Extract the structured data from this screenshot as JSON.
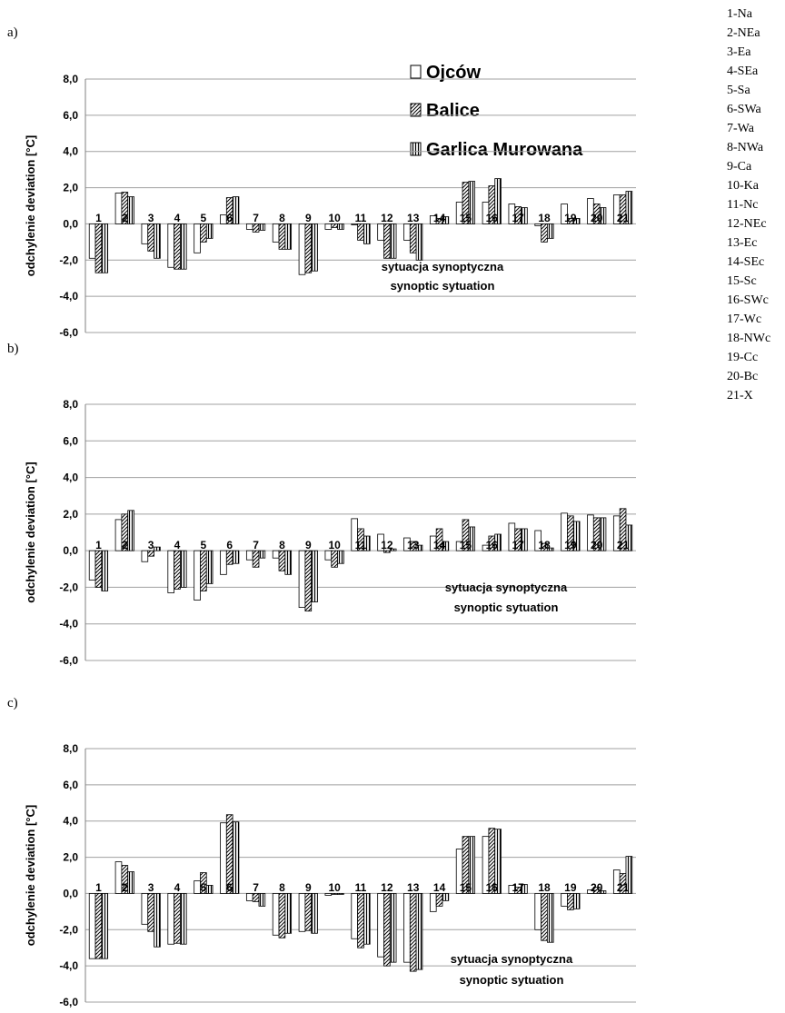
{
  "code_key": [
    "1-Na",
    "2-NEa",
    "3-Ea",
    "4-SEa",
    "5-Sa",
    "6-SWa",
    "7-Wa",
    "8-NWa",
    "9-Ca",
    "10-Ka",
    "11-Nc",
    "12-NEc",
    "13-Ec",
    "14-SEc",
    "15-Sc",
    "16-SWc",
    "17-Wc",
    "18-NWc",
    "19-Cc",
    "20-Bc",
    "21-X"
  ],
  "legend": {
    "items": [
      {
        "label": "Ojców",
        "pattern": "plain"
      },
      {
        "label": "Balice",
        "pattern": "diagonal"
      },
      {
        "label": "Garlica Murowana",
        "pattern": "vertical"
      }
    ]
  },
  "chart_data": [
    {
      "type": "bar",
      "panel_label": "a)",
      "categories": [
        "1",
        "2",
        "3",
        "4",
        "5",
        "6",
        "7",
        "8",
        "9",
        "10",
        "11",
        "12",
        "13",
        "14",
        "15",
        "16",
        "17",
        "18",
        "19",
        "20",
        "21"
      ],
      "ylabel": "odchylenie deviation [°C]",
      "xlabel_lines": [
        "sytuacja synoptyczna",
        "synoptic sytuation"
      ],
      "ylim": [
        -6,
        8
      ],
      "yticks": [
        "-6,0",
        "-4,0",
        "-2,0",
        "0,0",
        "2,0",
        "4,0",
        "6,0",
        "8,0"
      ],
      "grid": true,
      "legend": "top-right",
      "series": [
        {
          "name": "Ojców",
          "values": [
            -1.9,
            1.7,
            -1.1,
            -2.4,
            -1.6,
            0.5,
            -0.3,
            -1.0,
            -2.8,
            -0.3,
            0.0,
            -0.9,
            -0.9,
            0.45,
            1.2,
            1.2,
            1.1,
            -0.1,
            1.1,
            1.4,
            1.6
          ]
        },
        {
          "name": "Balice",
          "values": [
            -2.7,
            1.75,
            -1.5,
            -2.5,
            -1.0,
            1.45,
            -0.45,
            -1.4,
            -2.7,
            -0.2,
            -0.9,
            -1.9,
            -1.6,
            0.3,
            2.3,
            2.1,
            0.95,
            -1.0,
            0.3,
            1.1,
            1.6
          ]
        },
        {
          "name": "Garlica Murowana",
          "values": [
            -2.7,
            1.5,
            -1.9,
            -2.5,
            -0.8,
            1.5,
            -0.35,
            -1.4,
            -2.6,
            -0.3,
            -1.1,
            -1.9,
            -2.0,
            0.4,
            2.35,
            2.5,
            0.9,
            -0.8,
            0.3,
            0.9,
            1.8
          ]
        }
      ]
    },
    {
      "type": "bar",
      "panel_label": "b)",
      "categories": [
        "1",
        "2",
        "3",
        "4",
        "5",
        "6",
        "7",
        "8",
        "9",
        "10",
        "11",
        "12",
        "13",
        "14",
        "15",
        "16",
        "17",
        "18",
        "19",
        "20",
        "21"
      ],
      "ylabel": "odchylenie deviation [°C]",
      "xlabel_lines": [
        "sytuacja synoptyczna",
        "synoptic sytuation"
      ],
      "ylim": [
        -6,
        8
      ],
      "yticks": [
        "-6,0",
        "-4,0",
        "-2,0",
        "0,0",
        "2,0",
        "4,0",
        "6,0",
        "8,0"
      ],
      "grid": true,
      "series": [
        {
          "name": "Ojców",
          "values": [
            -1.6,
            1.7,
            -0.6,
            -2.3,
            -2.7,
            -1.3,
            -0.5,
            -0.4,
            -3.1,
            -0.5,
            1.75,
            0.9,
            0.7,
            0.8,
            0.5,
            0.3,
            1.5,
            1.1,
            2.05,
            1.95,
            1.9
          ]
        },
        {
          "name": "Balice",
          "values": [
            -2.0,
            2.0,
            -0.3,
            -2.1,
            -2.2,
            -0.75,
            -0.9,
            -1.1,
            -3.3,
            -0.9,
            1.2,
            -0.1,
            0.5,
            1.2,
            1.7,
            0.8,
            1.2,
            0.4,
            1.9,
            1.8,
            2.3
          ]
        },
        {
          "name": "Garlica Murowana",
          "values": [
            -2.2,
            2.2,
            0.2,
            -2.0,
            -1.8,
            -0.7,
            -0.4,
            -1.3,
            -2.8,
            -0.7,
            0.8,
            0.1,
            0.3,
            0.5,
            1.3,
            0.9,
            1.2,
            0.15,
            1.6,
            1.8,
            1.4
          ]
        }
      ]
    },
    {
      "type": "bar",
      "panel_label": "c)",
      "categories": [
        "1",
        "2",
        "3",
        "4",
        "5",
        "6",
        "7",
        "8",
        "9",
        "10",
        "11",
        "12",
        "13",
        "14",
        "15",
        "16",
        "17",
        "18",
        "19",
        "20",
        "21"
      ],
      "ylabel": "odchylenie deviation [°C]",
      "xlabel_lines": [
        "sytuacja synoptyczna",
        "synoptic sytuation"
      ],
      "ylim": [
        -6,
        8
      ],
      "yticks": [
        "-6,0",
        "-4,0",
        "-2,0",
        "0,0",
        "2,0",
        "4,0",
        "6,0",
        "8,0"
      ],
      "grid": true,
      "series": [
        {
          "name": "Ojców",
          "values": [
            -3.6,
            1.75,
            -1.7,
            -2.8,
            0.7,
            3.9,
            -0.4,
            -2.3,
            -2.1,
            -0.1,
            -2.5,
            -3.5,
            -3.8,
            -1.0,
            2.45,
            3.15,
            0.45,
            -2.0,
            -0.7,
            0.2,
            1.3
          ]
        },
        {
          "name": "Balice",
          "values": [
            -3.6,
            1.55,
            -2.1,
            -2.75,
            1.15,
            4.35,
            -0.45,
            -2.45,
            -2.05,
            0.0,
            -3.0,
            -4.0,
            -4.3,
            -0.7,
            3.15,
            3.6,
            0.35,
            -2.6,
            -0.9,
            0.35,
            1.1
          ]
        },
        {
          "name": "Garlica Murowana",
          "values": [
            -3.6,
            1.2,
            -2.95,
            -2.8,
            0.45,
            3.95,
            -0.7,
            -2.2,
            -2.2,
            0.0,
            -2.8,
            -3.8,
            -4.2,
            -0.4,
            3.15,
            3.55,
            0.5,
            -2.7,
            -0.85,
            0.15,
            2.05
          ]
        }
      ]
    }
  ]
}
